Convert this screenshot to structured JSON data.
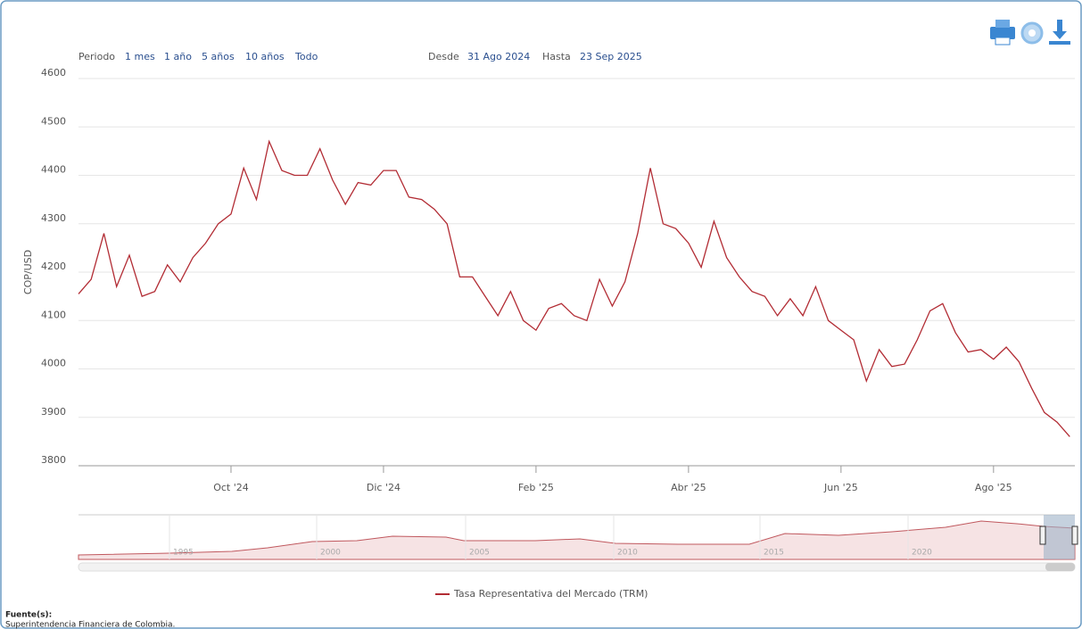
{
  "chart_data": {
    "type": "line",
    "ylabel": "COP/USD",
    "categories": [
      null,
      null,
      null,
      null,
      null,
      null,
      null,
      null,
      null,
      null,
      null,
      null,
      "Oct '24",
      null,
      null,
      null,
      null,
      null,
      null,
      null,
      null,
      null,
      null,
      null,
      "Dic '24",
      null,
      null,
      null,
      null,
      null,
      null,
      null,
      null,
      null,
      null,
      null,
      "Feb '25",
      null,
      null,
      null,
      null,
      null,
      null,
      null,
      null,
      null,
      null,
      null,
      "Abr '25",
      null,
      null,
      null,
      null,
      null,
      null,
      null,
      null,
      null,
      null,
      null,
      "Jun '25",
      null,
      null,
      null,
      null,
      null,
      null,
      null,
      null,
      null,
      null,
      null,
      "Ago '25",
      null,
      null,
      null,
      null,
      null,
      null
    ],
    "series": [
      {
        "name": "Tasa Representativa del Mercado (TRM)",
        "color": "#b22c34",
        "values": [
          4155,
          4185,
          4280,
          4170,
          4235,
          4150,
          4160,
          4215,
          4180,
          4230,
          4260,
          4300,
          4320,
          4415,
          4350,
          4470,
          4410,
          4400,
          4400,
          4455,
          4390,
          4340,
          4385,
          4380,
          4410,
          4410,
          4355,
          4350,
          4330,
          4300,
          4190,
          4190,
          4150,
          4110,
          4160,
          4100,
          4080,
          4125,
          4135,
          4110,
          4100,
          4185,
          4130,
          4180,
          4280,
          4415,
          4300,
          4290,
          4260,
          4210,
          4305,
          4230,
          4190,
          4160,
          4150,
          4110,
          4145,
          4110,
          4170,
          4100,
          4080,
          4060,
          3975,
          4040,
          4005,
          4010,
          4060,
          4120,
          4135,
          4075,
          4035,
          4040,
          4020,
          4045,
          4015,
          3960,
          3910,
          3890,
          3860
        ]
      }
    ],
    "ylim": [
      3800,
      4600
    ],
    "yticks": [
      3800,
      3900,
      4000,
      4100,
      4200,
      4300,
      4400,
      4500,
      4600
    ],
    "grid": true
  },
  "toolbar": {
    "period": "Periodo",
    "buttons": [
      "1 mes",
      "1 año",
      "5 años",
      "10 años",
      "Todo"
    ],
    "from_label": "Desde",
    "from": "31 Ago 2024",
    "to_label": "Hasta",
    "to": "23 Sep 2025"
  },
  "navigator": {
    "labels": [
      "1995",
      "2000",
      "2005",
      "2010",
      "2015",
      "2020"
    ]
  },
  "footer": {
    "title": "Fuente(s):",
    "source": "Superintendencia Financiera de Colombia."
  }
}
